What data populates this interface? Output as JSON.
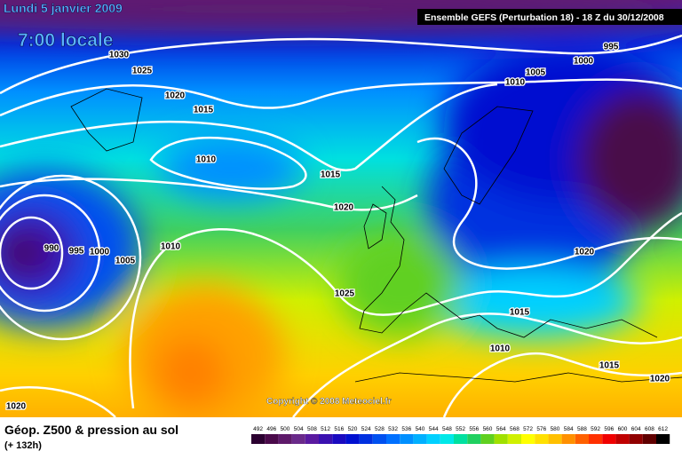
{
  "header": {
    "date": "Lundi 5 janvier 2009",
    "time": "7:00 locale",
    "run": "Ensemble GEFS (Perturbation 18)  -  18 Z du 30/12/2008",
    "copyright": "Copyright © 2008 Meteociel.fr"
  },
  "isobar_labels": [
    "995",
    "1000",
    "1005",
    "1010",
    "1030",
    "1025",
    "1020",
    "1015",
    "1010",
    "1015",
    "1020",
    "990",
    "995",
    "1000",
    "1005",
    "1010",
    "1025",
    "1020",
    "1015",
    "1010",
    "1015",
    "1020",
    "1020"
  ],
  "footer": {
    "title": "Géop. Z500 & pression au sol",
    "lead": "(+ 132h)"
  },
  "legend": [
    {
      "value": 492,
      "color": "#2b0030"
    },
    {
      "value": 496,
      "color": "#4a0a4a"
    },
    {
      "value": 500,
      "color": "#5e1a6a"
    },
    {
      "value": 504,
      "color": "#6a2a8a"
    },
    {
      "value": 508,
      "color": "#5a1aa0"
    },
    {
      "value": 512,
      "color": "#3a10b0"
    },
    {
      "value": 516,
      "color": "#1a0ac0"
    },
    {
      "value": 520,
      "color": "#0010d0"
    },
    {
      "value": 524,
      "color": "#0030e0"
    },
    {
      "value": 528,
      "color": "#0050f0"
    },
    {
      "value": 532,
      "color": "#0070ff"
    },
    {
      "value": 536,
      "color": "#0090ff"
    },
    {
      "value": 540,
      "color": "#00b0ff"
    },
    {
      "value": 544,
      "color": "#00d0ff"
    },
    {
      "value": 548,
      "color": "#00e8e8"
    },
    {
      "value": 552,
      "color": "#00e0a0"
    },
    {
      "value": 556,
      "color": "#20d060"
    },
    {
      "value": 560,
      "color": "#60d020"
    },
    {
      "value": 564,
      "color": "#a0e000"
    },
    {
      "value": 568,
      "color": "#d0f000"
    },
    {
      "value": 572,
      "color": "#ffff00"
    },
    {
      "value": 576,
      "color": "#ffe000"
    },
    {
      "value": 580,
      "color": "#ffc000"
    },
    {
      "value": 584,
      "color": "#ff9000"
    },
    {
      "value": 588,
      "color": "#ff6000"
    },
    {
      "value": 592,
      "color": "#ff3000"
    },
    {
      "value": 596,
      "color": "#f00000"
    },
    {
      "value": 600,
      "color": "#c00000"
    },
    {
      "value": 604,
      "color": "#900000"
    },
    {
      "value": 608,
      "color": "#600000"
    },
    {
      "value": 612,
      "color": "#000000"
    }
  ]
}
